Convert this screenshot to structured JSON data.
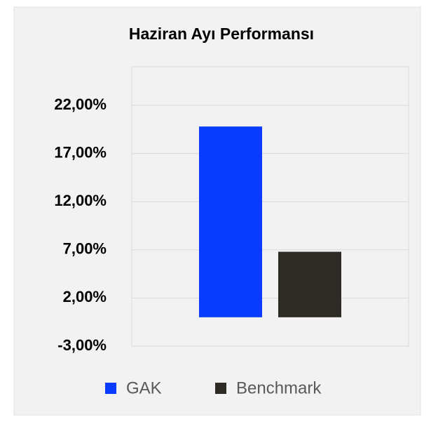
{
  "chart_data": {
    "type": "bar",
    "title": "Haziran Ayı Performansı",
    "categories": [
      null
    ],
    "series": [
      {
        "name": "GAK",
        "color": "#0a3cff",
        "values": [
          19.8
        ]
      },
      {
        "name": "Benchmark",
        "color": "#2e2b27",
        "values": [
          6.8
        ]
      }
    ],
    "ylim": [
      -3,
      22
    ],
    "yticks": [
      {
        "value": -3,
        "label": "-3,00%"
      },
      {
        "value": 2,
        "label": "2,00%"
      },
      {
        "value": 7,
        "label": "7,00%"
      },
      {
        "value": 12,
        "label": "12,00%"
      },
      {
        "value": 17,
        "label": "17,00%"
      },
      {
        "value": 22,
        "label": "22,00%"
      }
    ],
    "grid": true,
    "legend": "bottom"
  }
}
